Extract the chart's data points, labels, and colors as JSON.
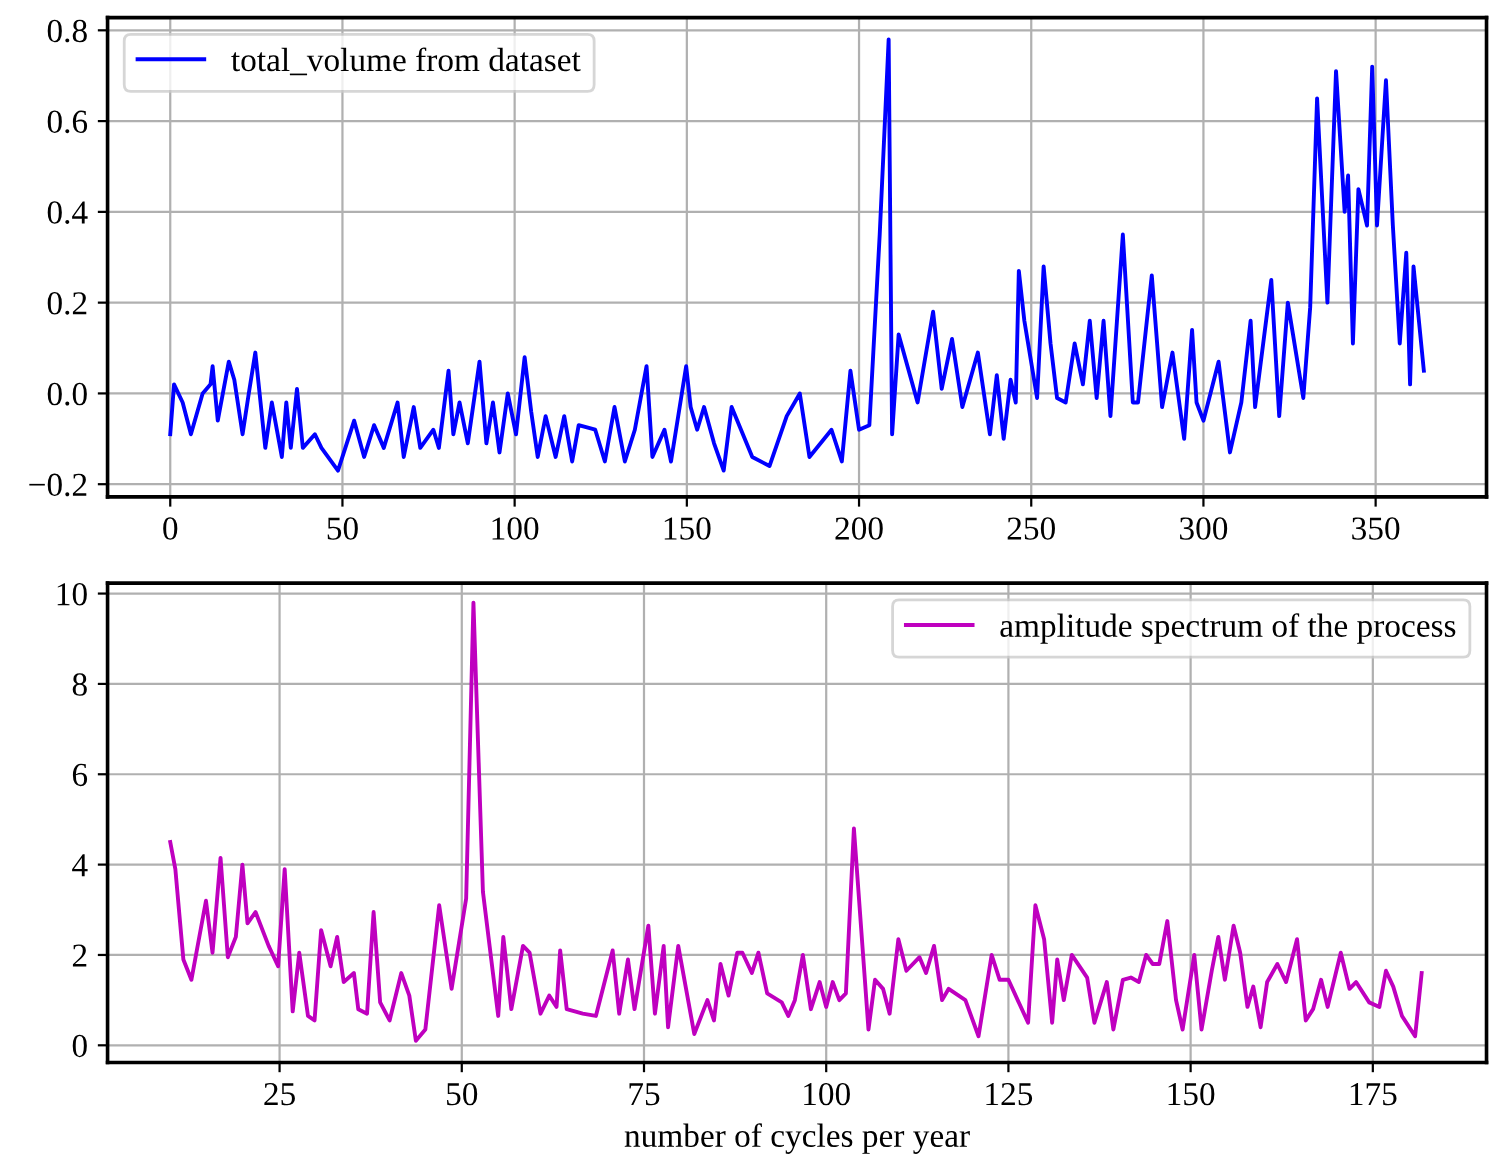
{
  "chart_data": [
    {
      "type": "line",
      "xlim": [
        -18.2,
        382.2
      ],
      "ylim": [
        -0.228,
        0.828
      ],
      "xticks": [
        0,
        50,
        100,
        150,
        200,
        250,
        300,
        350
      ],
      "yticks": [
        {
          "value": -0.2,
          "label": "−0.2"
        },
        {
          "value": 0,
          "label": "0.0"
        },
        0.2,
        0.4,
        0.6,
        0.8
      ],
      "grid": true,
      "legend": "top left",
      "series": [
        {
          "name": "total_volume from dataset",
          "color": "#0000ff",
          "x": [
            0,
            1.1,
            3.6,
            6,
            9.4,
            11.7,
            12.3,
            13.8,
            17,
            18.6,
            21,
            22.8,
            24.7,
            27.6,
            29.5,
            32.4,
            33.7,
            35,
            36.8,
            38.5,
            42,
            43.9,
            48.7,
            53.4,
            56.3,
            59.2,
            62,
            66,
            67.8,
            70.7,
            72.6,
            76.4,
            78,
            80.8,
            82.2,
            84,
            86.4,
            89.8,
            91.8,
            93.7,
            95.6,
            98,
            100.4,
            102.9,
            104.8,
            106.7,
            109,
            111.9,
            114.4,
            116.7,
            118.6,
            123.4,
            126.2,
            129,
            132,
            134.9,
            138.3,
            140,
            143.5,
            145.4,
            149.8,
            151.1,
            153,
            155,
            157.9,
            160.7,
            163,
            169,
            174,
            179,
            182.8,
            185.6,
            192,
            195,
            197.5,
            200,
            203,
            206,
            208.6,
            209.6,
            211.5,
            217,
            221.5,
            224,
            227,
            230,
            234.5,
            238,
            240,
            242,
            244,
            245.5,
            246.4,
            248,
            251.7,
            253.6,
            255.6,
            257.5,
            260,
            262.6,
            265,
            267,
            269,
            271,
            273,
            276.6,
            279.5,
            281,
            285,
            288,
            291,
            294.4,
            296.7,
            298,
            300,
            304.4,
            307.7,
            311,
            313.7,
            315,
            319.7,
            322,
            324.5,
            326,
            329,
            331,
            333,
            336,
            338.5,
            341,
            342,
            343.4,
            345,
            347.5,
            349,
            350.4,
            353,
            355,
            357,
            358.9,
            360,
            361,
            364
          ],
          "values": [
            -0.09,
            0.02,
            -0.02,
            -0.09,
            0,
            0.02,
            0.06,
            -0.06,
            0.07,
            0.03,
            -0.09,
            0,
            0.09,
            -0.12,
            -0.02,
            -0.14,
            -0.02,
            -0.12,
            0.01,
            -0.12,
            -0.09,
            -0.12,
            -0.17,
            -0.06,
            -0.14,
            -0.07,
            -0.12,
            -0.02,
            -0.14,
            -0.03,
            -0.12,
            -0.08,
            -0.12,
            0.05,
            -0.09,
            -0.02,
            -0.11,
            0.07,
            -0.11,
            -0.02,
            -0.13,
            0,
            -0.09,
            0.08,
            -0.04,
            -0.14,
            -0.05,
            -0.14,
            -0.05,
            -0.15,
            -0.07,
            -0.08,
            -0.15,
            -0.03,
            -0.15,
            -0.08,
            0.06,
            -0.14,
            -0.08,
            -0.15,
            0.06,
            -0.03,
            -0.08,
            -0.03,
            -0.11,
            -0.17,
            -0.03,
            -0.14,
            -0.16,
            -0.05,
            0,
            -0.14,
            -0.08,
            -0.15,
            0.05,
            -0.08,
            -0.07,
            0.35,
            0.78,
            -0.09,
            0.13,
            -0.02,
            0.18,
            0.01,
            0.12,
            -0.03,
            0.09,
            -0.09,
            0.04,
            -0.1,
            0.03,
            -0.02,
            0.27,
            0.16,
            -0.01,
            0.28,
            0.11,
            -0.01,
            -0.02,
            0.11,
            0.02,
            0.16,
            -0.01,
            0.16,
            -0.05,
            0.35,
            -0.02,
            -0.02,
            0.26,
            -0.03,
            0.09,
            -0.1,
            0.14,
            -0.02,
            -0.06,
            0.07,
            -0.13,
            -0.02,
            0.16,
            -0.03,
            0.25,
            -0.05,
            0.2,
            0.13,
            -0.01,
            0.19,
            0.65,
            0.2,
            0.71,
            0.4,
            0.48,
            0.11,
            0.45,
            0.37,
            0.72,
            0.37,
            0.69,
            0.37,
            0.11,
            0.31,
            0.02,
            0.28,
            0.05
          ]
        }
      ]
    },
    {
      "type": "line",
      "xlabel": "number of cycles per year",
      "xlim": [
        1.4,
        190.6
      ],
      "ylim": [
        -0.38,
        10.23
      ],
      "xticks": [
        25,
        50,
        75,
        100,
        125,
        150,
        175
      ],
      "yticks": [
        0,
        2,
        4,
        6,
        8,
        10
      ],
      "grid": true,
      "legend": "top right",
      "series": [
        {
          "name": "amplitude spectrum of the process",
          "color": "#bf00bf",
          "x": [
            10,
            10.7,
            11.8,
            12.9,
            14.9,
            15.8,
            16.9,
            17.9,
            19,
            19.9,
            20.6,
            21.7,
            23.5,
            24.8,
            25.7,
            26.8,
            27.7,
            28.9,
            29.8,
            30.7,
            32,
            32.9,
            33.8,
            35.2,
            35.8,
            37,
            37.9,
            38.8,
            40.1,
            41.7,
            42.8,
            43.7,
            45,
            46.9,
            48.6,
            50.6,
            51.6,
            52.9,
            55,
            55.7,
            56.8,
            58.4,
            59.3,
            60.8,
            62,
            63,
            63.5,
            64.4,
            66.6,
            68.4,
            70.7,
            71.6,
            72.8,
            73.7,
            75.6,
            76.5,
            77.7,
            78.3,
            79.7,
            81.9,
            83.7,
            84.6,
            85.5,
            86.6,
            87.8,
            88.5,
            89.8,
            90.7,
            91.9,
            93.9,
            94.8,
            95.7,
            96.8,
            97.9,
            99.1,
            100,
            100.9,
            101.8,
            102.7,
            103.8,
            105.8,
            106.7,
            107.8,
            108.7,
            109.9,
            111,
            112.8,
            113.7,
            114.8,
            115.9,
            116.8,
            119.1,
            120.9,
            122.7,
            123.8,
            125,
            127.7,
            128.7,
            129.9,
            131,
            131.7,
            132.6,
            133.7,
            135.8,
            136.8,
            138.5,
            139.4,
            140.7,
            141.8,
            142.9,
            143.9,
            144.8,
            145.7,
            146.8,
            148,
            148.9,
            150.5,
            151.5,
            152.9,
            153.8,
            154.7,
            155.9,
            156.8,
            157.8,
            158.6,
            159.6,
            160.5,
            161.9,
            163.1,
            164.6,
            165.8,
            166.8,
            167.9,
            168.8,
            170.6,
            171.8,
            172.7,
            174.5,
            175.9,
            176.8,
            177.8,
            179,
            180.8,
            181.7
          ],
          "values": [
            4.5,
            3.9,
            1.9,
            1.45,
            3.2,
            2.05,
            4.15,
            1.95,
            2.4,
            4.0,
            2.7,
            2.95,
            2.2,
            1.75,
            3.9,
            0.75,
            2.05,
            0.65,
            0.55,
            2.55,
            1.75,
            2.4,
            1.4,
            1.6,
            0.8,
            0.7,
            2.95,
            0.95,
            0.55,
            1.6,
            1.1,
            0.1,
            0.35,
            3.1,
            1.25,
            3.25,
            9.8,
            3.4,
            0.65,
            2.4,
            0.8,
            2.2,
            2.05,
            0.7,
            1.1,
            0.85,
            2.1,
            0.8,
            0.7,
            0.65,
            2.1,
            0.7,
            1.9,
            0.8,
            2.65,
            0.7,
            2.2,
            0.4,
            2.2,
            0.25,
            1.0,
            0.55,
            1.8,
            1.1,
            2.05,
            2.05,
            1.6,
            2.05,
            1.15,
            0.95,
            0.65,
            1.0,
            2.0,
            0.8,
            1.4,
            0.85,
            1.4,
            1.0,
            1.15,
            4.8,
            0.35,
            1.45,
            1.25,
            0.7,
            2.35,
            1.65,
            1.95,
            1.6,
            2.2,
            1.0,
            1.25,
            1.0,
            0.2,
            2.0,
            1.45,
            1.45,
            0.5,
            3.1,
            2.35,
            0.5,
            1.9,
            1.0,
            2.0,
            1.5,
            0.5,
            1.4,
            0.35,
            1.45,
            1.5,
            1.4,
            2.0,
            1.8,
            1.8,
            2.75,
            1.0,
            0.35,
            2.0,
            0.35,
            1.65,
            2.4,
            1.45,
            2.65,
            2.05,
            0.85,
            1.3,
            0.4,
            1.4,
            1.8,
            1.4,
            2.35,
            0.55,
            0.8,
            1.45,
            0.85,
            2.05,
            1.25,
            1.4,
            0.95,
            0.85,
            1.65,
            1.3,
            0.65,
            0.2,
            1.6
          ]
        }
      ]
    }
  ]
}
